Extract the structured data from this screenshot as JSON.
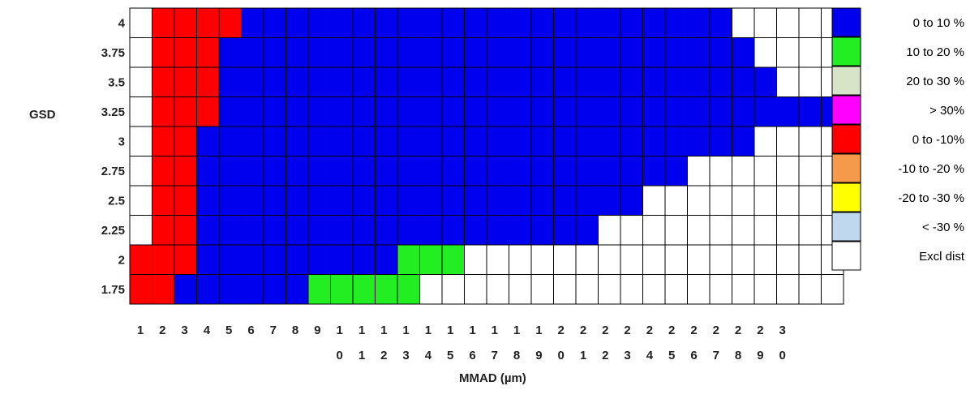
{
  "chart_data": {
    "type": "heatmap",
    "title": "",
    "ylabel": "GSD",
    "xlabel": "MMAD (µm)",
    "y_categories": [
      "4",
      "3.75",
      "3.5",
      "3.25",
      "3",
      "2.75",
      "2.5",
      "2.25",
      "2",
      "1.75"
    ],
    "x_ticks_line1": [
      "1",
      "2",
      "3",
      "4",
      "5",
      "6",
      "7",
      "8",
      "9",
      "1",
      "1",
      "1",
      "1",
      "1",
      "1",
      "1",
      "1",
      "1",
      "1",
      "2",
      "2",
      "2",
      "2",
      "2",
      "2",
      "2",
      "2",
      "2",
      "2",
      "3"
    ],
    "x_ticks_line2": [
      "",
      "",
      "",
      "",
      "",
      "",
      "",
      "",
      "",
      "0",
      "1",
      "2",
      "3",
      "4",
      "5",
      "6",
      "7",
      "8",
      "9",
      "0",
      "1",
      "2",
      "3",
      "4",
      "5",
      "6",
      "7",
      "8",
      "9",
      "0"
    ],
    "legend": [
      {
        "key": "b",
        "label": "0 to 10 %",
        "color": "#0000EE"
      },
      {
        "key": "g",
        "label": "10 to 20 %",
        "color": "#22EE22"
      },
      {
        "key": "t",
        "label": "20 to 30 %",
        "color": "#D8E4C8"
      },
      {
        "key": "m",
        "label": "> 30%",
        "color": "#FF00FF"
      },
      {
        "key": "r",
        "label": "0 to -10%",
        "color": "#FF0000"
      },
      {
        "key": "o",
        "label": "-10 to -20 %",
        "color": "#F59A4A"
      },
      {
        "key": "y",
        "label": "-20 to -30 %",
        "color": "#FFFF00"
      },
      {
        "key": "l",
        "label": "< -30 %",
        "color": "#C0D8EE"
      },
      {
        "key": "w",
        "label": "Excl dist",
        "color": "#FFFFFF"
      }
    ],
    "rows": [
      "wrrrrbbbbbbbbbbbbbbbbbbbbbbwwwww",
      "wrrrbbbbbbbbbbbbbbbbbbbbbbbbwwww",
      "wrrrbbbbbbbbbbbbbbbbbbbbbbbbbwww",
      "wrrrbbbbbbbbbbbbbbbbbbbbbbbbbbbb",
      "wrrbbbbbbbbbbbbbbbbbbbbbbbbbwwww",
      "wrrbbbbbbbbbbbbbbbbbbbbbbwwwwwww",
      "wrrbbbbbbbbbbbbbbbbbbbbwwwwwwwww",
      "wrrbbbbbbbbbbbbbbbbbbwwwwwwwwwww",
      "rrrbbbbbbbbbgggwwwwwwwwwwwwwwwww",
      "rrbbbbbbgggggwwwwwwwwwwwwwwwwwww"
    ]
  }
}
